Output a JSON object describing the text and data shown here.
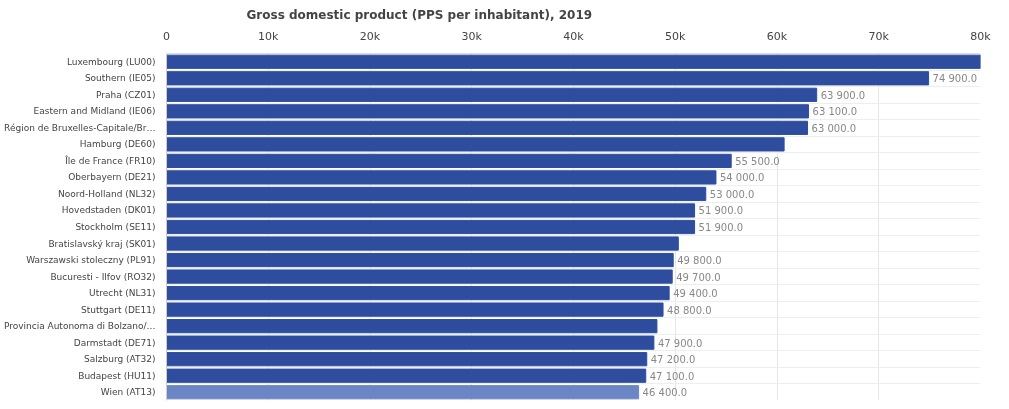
{
  "chart_data": {
    "type": "bar",
    "orientation": "horizontal",
    "title": "Gross domestic product (PPS per inhabitant), 2019",
    "categories": [
      "Luxembourg (LU00)",
      "Southern (IE05)",
      "Praha (CZ01)",
      "Eastern and Midland (IE06)",
      "Région de Bruxelles-Capitale/Br…",
      "Hamburg (DE60)",
      "Île de France (FR10)",
      "Oberbayern (DE21)",
      "Noord-Holland (NL32)",
      "Hovedstaden (DK01)",
      "Stockholm (SE11)",
      "Bratislavský kraj (SK01)",
      "Warszawski stoleczny (PL91)",
      "Bucuresti - Ilfov (RO32)",
      "Utrecht (NL31)",
      "Stuttgart (DE11)",
      "Provincia Autonoma di Bolzano/…",
      "Darmstadt (DE71)",
      "Salzburg (AT32)",
      "Budapest (HU11)",
      "Wien (AT13)"
    ],
    "values": [
      80000,
      74900,
      63900,
      63100,
      63000,
      60700,
      55500,
      54000,
      53000,
      51900,
      51900,
      50300,
      49800,
      49700,
      49400,
      48800,
      48200,
      47900,
      47200,
      47100,
      46400
    ],
    "value_labels": [
      null,
      "74 900.0",
      "63 900.0",
      "63 100.0",
      "63 000.0",
      null,
      "55 500.0",
      "54 000.0",
      "53 000.0",
      "51 900.0",
      "51 900.0",
      null,
      "49 800.0",
      "49 700.0",
      "49 400.0",
      "48 800.0",
      null,
      "47 900.0",
      "47 200.0",
      "47 100.0",
      "46 400.0"
    ],
    "colors": [
      "#2e4d9f",
      "#2e4d9f",
      "#2e4d9f",
      "#2e4d9f",
      "#2e4d9f",
      "#2e4d9f",
      "#2e4d9f",
      "#2e4d9f",
      "#2e4d9f",
      "#2e4d9f",
      "#2e4d9f",
      "#2e4d9f",
      "#2e4d9f",
      "#2e4d9f",
      "#2e4d9f",
      "#2e4d9f",
      "#2e4d9f",
      "#2e4d9f",
      "#2e4d9f",
      "#2e4d9f",
      "#6a86c4"
    ],
    "xlim": [
      0,
      80000
    ],
    "xticks": [
      0,
      {
        "value": 10000,
        "label": "10k"
      },
      {
        "value": 20000,
        "label": "20k"
      },
      {
        "value": 30000,
        "label": "30k"
      },
      {
        "value": 40000,
        "label": "40k"
      },
      {
        "value": 50000,
        "label": "50k"
      },
      {
        "value": 60000,
        "label": "60k"
      },
      {
        "value": 70000,
        "label": "70k"
      },
      {
        "value": 80000,
        "label": "80k"
      }
    ],
    "grid": true
  }
}
